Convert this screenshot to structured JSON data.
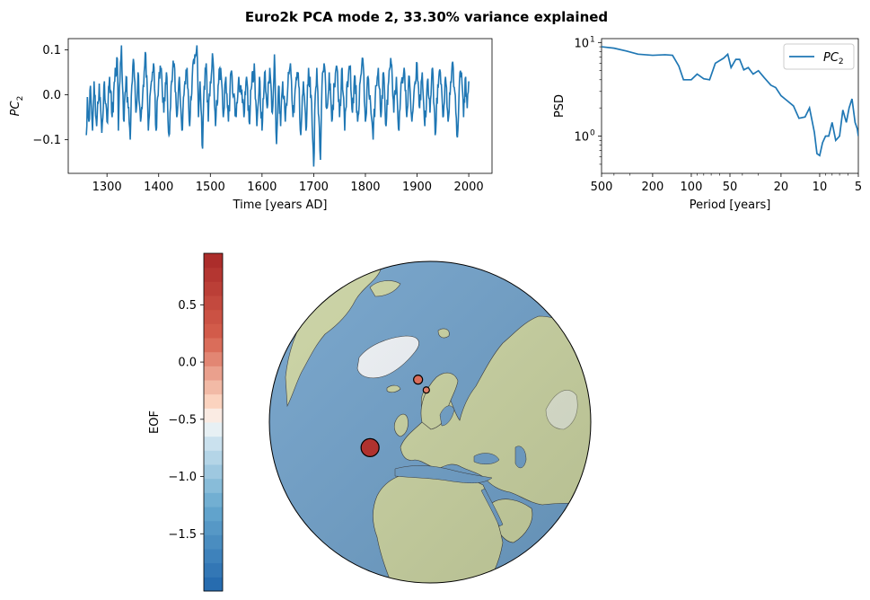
{
  "title": "Euro2k PCA mode 2, 33.30% variance explained",
  "colors": {
    "series": "#1f77b4",
    "ocean": "#6e9fc8",
    "land": "#c9d2a0",
    "ice": "#eef2f6"
  },
  "chart_data": [
    {
      "type": "line",
      "name": "pc-timeseries",
      "xlabel": "Time [years AD]",
      "ylabel": "PC",
      "ylabel_sub": "2",
      "xlim": [
        1225,
        2045
      ],
      "ylim": [
        -0.175,
        0.125
      ],
      "xticks": [
        "1300",
        "1400",
        "1500",
        "1600",
        "1700",
        "1800",
        "1900",
        "2000"
      ],
      "yticks": [
        "0.1",
        "0.0",
        "−0.1"
      ],
      "x_range": [
        1260,
        2000
      ],
      "series": [
        {
          "points": [
            [
              1260,
              -0.09
            ],
            [
              1262,
              -0.005
            ],
            [
              1265,
              -0.06
            ],
            [
              1268,
              0.02
            ],
            [
              1272,
              -0.08
            ],
            [
              1275,
              0.03
            ],
            [
              1280,
              -0.07
            ],
            [
              1285,
              0.025
            ],
            [
              1290,
              -0.085
            ],
            [
              1295,
              0.03
            ],
            [
              1300,
              -0.06
            ],
            [
              1305,
              0.04
            ],
            [
              1310,
              -0.05
            ],
            [
              1315,
              0.03
            ],
            [
              1320,
              0.08
            ],
            [
              1322,
              -0.08
            ],
            [
              1325,
              0.03
            ],
            [
              1328,
              0.11
            ],
            [
              1330,
              0.02
            ],
            [
              1333,
              -0.06
            ],
            [
              1337,
              0.04
            ],
            [
              1341,
              -0.03
            ],
            [
              1345,
              -0.1
            ],
            [
              1348,
              0.02
            ],
            [
              1352,
              0.07
            ],
            [
              1356,
              -0.04
            ],
            [
              1360,
              0.05
            ],
            [
              1365,
              -0.06
            ],
            [
              1370,
              0.02
            ],
            [
              1375,
              0.09
            ],
            [
              1380,
              -0.08
            ],
            [
              1385,
              0.02
            ],
            [
              1390,
              0.07
            ],
            [
              1395,
              -0.08
            ],
            [
              1400,
              0.03
            ],
            [
              1405,
              0.06
            ],
            [
              1410,
              -0.04
            ],
            [
              1415,
              0.05
            ],
            [
              1420,
              -0.09
            ],
            [
              1425,
              0.03
            ],
            [
              1430,
              0.07
            ],
            [
              1435,
              -0.05
            ],
            [
              1440,
              0.04
            ],
            [
              1445,
              -0.08
            ],
            [
              1450,
              0.02
            ],
            [
              1455,
              0.06
            ],
            [
              1460,
              -0.07
            ],
            [
              1465,
              0.04
            ],
            [
              1470,
              0.09
            ],
            [
              1474,
              0.11
            ],
            [
              1477,
              -0.05
            ],
            [
              1480,
              0.03
            ],
            [
              1485,
              -0.12
            ],
            [
              1488,
              0.02
            ],
            [
              1492,
              0.07
            ],
            [
              1496,
              -0.06
            ],
            [
              1500,
              0.03
            ],
            [
              1505,
              0.08
            ],
            [
              1510,
              -0.07
            ],
            [
              1515,
              0.02
            ],
            [
              1520,
              0.06
            ],
            [
              1525,
              -0.05
            ],
            [
              1530,
              0.04
            ],
            [
              1535,
              -0.06
            ],
            [
              1540,
              0.05
            ],
            [
              1545,
              0.0
            ],
            [
              1550,
              -0.05
            ],
            [
              1555,
              0.04
            ],
            [
              1560,
              0.0
            ],
            [
              1565,
              -0.05
            ],
            [
              1570,
              0.04
            ],
            [
              1575,
              -0.06
            ],
            [
              1580,
              0.02
            ],
            [
              1585,
              0.07
            ],
            [
              1590,
              -0.07
            ],
            [
              1595,
              0.04
            ],
            [
              1600,
              -0.08
            ],
            [
              1605,
              0.05
            ],
            [
              1610,
              -0.03
            ],
            [
              1615,
              0.06
            ],
            [
              1620,
              -0.04
            ],
            [
              1624,
              0.09
            ],
            [
              1628,
              -0.11
            ],
            [
              1632,
              0.02
            ],
            [
              1636,
              -0.07
            ],
            [
              1640,
              0.03
            ],
            [
              1645,
              -0.06
            ],
            [
              1650,
              0.02
            ],
            [
              1655,
              0.07
            ],
            [
              1660,
              -0.05
            ],
            [
              1665,
              0.02
            ],
            [
              1670,
              0.05
            ],
            [
              1675,
              -0.09
            ],
            [
              1680,
              0.03
            ],
            [
              1685,
              -0.08
            ],
            [
              1690,
              0.06
            ],
            [
              1695,
              0.0
            ],
            [
              1700,
              -0.16
            ],
            [
              1703,
              0.0
            ],
            [
              1706,
              0.06
            ],
            [
              1710,
              -0.05
            ],
            [
              1713,
              -0.145
            ],
            [
              1716,
              0.02
            ],
            [
              1720,
              0.07
            ],
            [
              1725,
              -0.03
            ],
            [
              1730,
              0.05
            ],
            [
              1735,
              -0.06
            ],
            [
              1740,
              0.02
            ],
            [
              1745,
              0.06
            ],
            [
              1750,
              -0.05
            ],
            [
              1755,
              0.06
            ],
            [
              1760,
              -0.08
            ],
            [
              1765,
              0.03
            ],
            [
              1770,
              0.06
            ],
            [
              1775,
              -0.04
            ],
            [
              1780,
              0.04
            ],
            [
              1785,
              -0.06
            ],
            [
              1790,
              0.03
            ],
            [
              1795,
              0.08
            ],
            [
              1800,
              -0.06
            ],
            [
              1805,
              0.04
            ],
            [
              1810,
              -0.02
            ],
            [
              1815,
              -0.1
            ],
            [
              1820,
              0.02
            ],
            [
              1825,
              0.06
            ],
            [
              1830,
              -0.05
            ],
            [
              1835,
              0.05
            ],
            [
              1840,
              -0.07
            ],
            [
              1845,
              0.03
            ],
            [
              1850,
              0.07
            ],
            [
              1855,
              -0.04
            ],
            [
              1860,
              0.04
            ],
            [
              1865,
              -0.08
            ],
            [
              1870,
              0.03
            ],
            [
              1875,
              0.06
            ],
            [
              1880,
              -0.05
            ],
            [
              1885,
              0.04
            ],
            [
              1890,
              -0.06
            ],
            [
              1895,
              0.02
            ],
            [
              1900,
              0.07
            ],
            [
              1905,
              -0.03
            ],
            [
              1910,
              0.05
            ],
            [
              1915,
              -0.07
            ],
            [
              1920,
              0.03
            ],
            [
              1925,
              -0.04
            ],
            [
              1930,
              0.06
            ],
            [
              1935,
              -0.09
            ],
            [
              1940,
              0.02
            ],
            [
              1945,
              0.05
            ],
            [
              1950,
              -0.05
            ],
            [
              1955,
              0.04
            ],
            [
              1960,
              -0.06
            ],
            [
              1965,
              0.03
            ],
            [
              1970,
              0.06
            ],
            [
              1975,
              -0.04
            ],
            [
              1978,
              -0.095
            ],
            [
              1982,
              0.03
            ],
            [
              1986,
              0.05
            ],
            [
              1990,
              -0.05
            ],
            [
              1994,
              0.04
            ],
            [
              1997,
              -0.03
            ],
            [
              2000,
              0.03
            ]
          ]
        }
      ]
    },
    {
      "type": "line",
      "name": "psd-spectrum",
      "xscale": "log-reversed",
      "yscale": "log",
      "xlabel": "Period [years]",
      "ylabel": "PSD",
      "xlim": [
        500,
        5
      ],
      "ylim": [
        0.4,
        11
      ],
      "xticks": [
        {
          "value": 500,
          "label": "500"
        },
        {
          "value": 200,
          "label": "200"
        },
        {
          "value": 100,
          "label": "100"
        },
        {
          "value": 50,
          "label": "50"
        },
        {
          "value": 20,
          "label": "20"
        },
        {
          "value": 10,
          "label": "10"
        },
        {
          "value": 5,
          "label": "5"
        }
      ],
      "yticks": [
        {
          "value": 1,
          "label": "10",
          "exp": "0"
        },
        {
          "value": 10,
          "label": "10",
          "exp": "1"
        }
      ],
      "legend": {
        "label": "PC",
        "sub": "2",
        "loc": "upper right"
      },
      "series": [
        {
          "name": "PC2",
          "points": [
            [
              500,
              9.0
            ],
            [
              400,
              8.7
            ],
            [
              320,
              8.1
            ],
            [
              260,
              7.5
            ],
            [
              200,
              7.3
            ],
            [
              160,
              7.4
            ],
            [
              140,
              7.3
            ],
            [
              125,
              5.6
            ],
            [
              115,
              4.0
            ],
            [
              100,
              4.0
            ],
            [
              90,
              4.6
            ],
            [
              80,
              4.1
            ],
            [
              72,
              4.0
            ],
            [
              65,
              6.0
            ],
            [
              56,
              6.8
            ],
            [
              52,
              7.5
            ],
            [
              49,
              5.4
            ],
            [
              45,
              6.6
            ],
            [
              42,
              6.6
            ],
            [
              39,
              5.1
            ],
            [
              36,
              5.4
            ],
            [
              33,
              4.6
            ],
            [
              30,
              5.0
            ],
            [
              27,
              4.2
            ],
            [
              24,
              3.5
            ],
            [
              22,
              3.3
            ],
            [
              20,
              2.7
            ],
            [
              18,
              2.4
            ],
            [
              16,
              2.1
            ],
            [
              14.5,
              1.55
            ],
            [
              13,
              1.6
            ],
            [
              12,
              2.0
            ],
            [
              11,
              1.1
            ],
            [
              10.5,
              0.65
            ],
            [
              10,
              0.62
            ],
            [
              9.5,
              0.85
            ],
            [
              9,
              1.0
            ],
            [
              8.5,
              1.0
            ],
            [
              8,
              1.4
            ],
            [
              7.5,
              0.9
            ],
            [
              7,
              1.0
            ],
            [
              6.6,
              1.9
            ],
            [
              6.2,
              1.4
            ],
            [
              5.9,
              2.0
            ],
            [
              5.6,
              2.5
            ],
            [
              5.3,
              1.4
            ],
            [
              5.1,
              1.2
            ],
            [
              5,
              1.0
            ]
          ]
        }
      ]
    },
    {
      "type": "map",
      "name": "eof-map",
      "projection": "orthographic",
      "center": {
        "lat": 52,
        "lon": 30
      },
      "colorbar": {
        "label": "EOF",
        "range": [
          -2.0,
          0.95
        ],
        "ticks": [
          {
            "value": 0.5,
            "label": "0.5"
          },
          {
            "value": 0.0,
            "label": "0.0"
          },
          {
            "value": -0.5,
            "label": "−0.5"
          },
          {
            "value": -1.0,
            "label": "−1.0"
          },
          {
            "value": -1.5,
            "label": "−1.5"
          }
        ]
      },
      "sites": [
        {
          "lat": 38.5,
          "lon": 1.5,
          "value": 0.82,
          "size": "large"
        },
        {
          "lat": 67.0,
          "lon": 19.0,
          "value": 0.15,
          "size": "medium"
        },
        {
          "lat": 63.5,
          "lon": 27.0,
          "value": 0.08,
          "size": "small"
        }
      ]
    }
  ]
}
